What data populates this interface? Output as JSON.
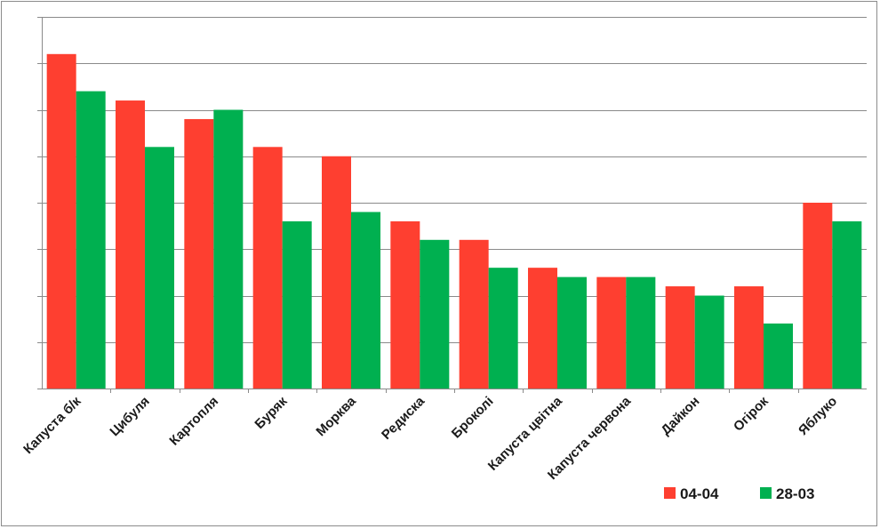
{
  "chart_data": {
    "type": "bar",
    "title": "",
    "xlabel": "",
    "ylabel": "",
    "categories": [
      "Капуста б/к",
      "Цибуля",
      "Картопля",
      "Буряк",
      "Морква",
      "Редиска",
      "Броколі",
      "Капуста цвітна",
      "Капуста червона",
      "Дайкон",
      "Огірок",
      "Яблуко"
    ],
    "series": [
      {
        "name": "04-04",
        "color": "#fe3f30",
        "values": [
          36,
          31,
          29,
          26,
          25,
          18,
          16,
          13,
          12,
          11,
          11,
          20
        ]
      },
      {
        "name": "28-03",
        "color": "#00b050",
        "values": [
          32,
          26,
          30,
          18,
          19,
          16,
          13,
          12,
          12,
          10,
          7,
          18
        ]
      }
    ],
    "ylim": [
      0,
      40
    ],
    "ytick_step": 5,
    "grid": true,
    "show_y_tick_labels": false,
    "legend_position": "bottom-right"
  }
}
